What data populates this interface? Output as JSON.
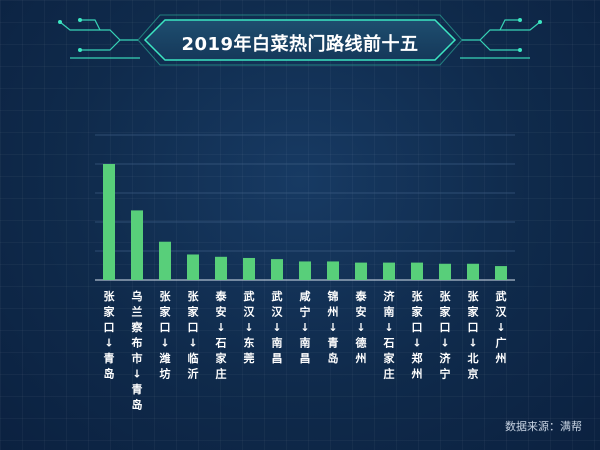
{
  "colors": {
    "background": "#10294a",
    "accent": "#3ce6c2",
    "bar": "#58cf7a",
    "grid": "#3a5a80",
    "label": "#ffffff"
  },
  "source_note": "数据来源：满帮",
  "chart_data": {
    "type": "bar",
    "title": "2019年白菜热门路线前十五",
    "xlabel": "",
    "ylabel": "",
    "categories": [
      "张家口↓青岛",
      "乌兰察布市↓青岛",
      "张家口↓潍坊",
      "张家口↓临沂",
      "泰安↓石家庄",
      "武汉↓东莞",
      "武汉↓南昌",
      "咸宁↓南昌",
      "锦州↓青岛",
      "泰安↓德州",
      "济南↓石家庄",
      "张家口↓郑州",
      "张家口↓济宁",
      "张家口↓北京",
      "武汉↓广州"
    ],
    "values": [
      100,
      60,
      33,
      22,
      20,
      19,
      18,
      16,
      16,
      15,
      15,
      15,
      14,
      14,
      12
    ],
    "ylim": [
      0,
      125
    ],
    "grid": true,
    "y_tick_labels_shown": false
  }
}
